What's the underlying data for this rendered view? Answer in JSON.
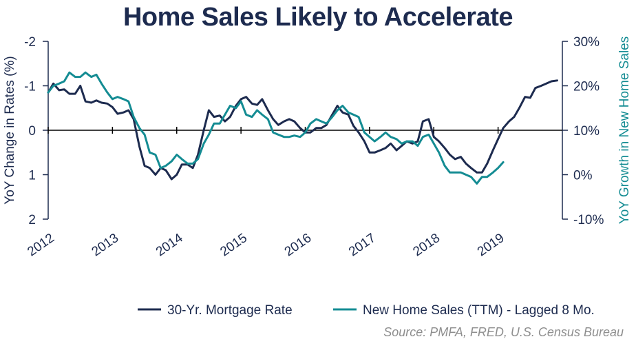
{
  "chart_data": {
    "type": "line",
    "title": "Home Sales Likely to Accelerate",
    "ylabel_left": "YoY Change in Rates (%)",
    "ylabel_right": "YoY Growth in New Home Sales",
    "left_axis": {
      "min": -2,
      "max": 2,
      "inverted": true,
      "ticks": [
        -2,
        -1,
        0,
        1,
        2
      ],
      "tick_labels": [
        "-2",
        "-1",
        "0",
        "1",
        "2"
      ]
    },
    "right_axis": {
      "min": -10,
      "max": 30,
      "ticks": [
        30,
        20,
        10,
        0,
        -10
      ],
      "tick_labels": [
        "30%",
        "20%",
        "10%",
        "0%",
        "-10%"
      ]
    },
    "x_axis": {
      "min": 2012.0,
      "max": 2020.0,
      "tick_labels": [
        "2012",
        "2013",
        "2014",
        "2015",
        "2016",
        "2017",
        "2018",
        "2019"
      ],
      "tick_years": [
        2012,
        2013,
        2014,
        2015,
        2016,
        2017,
        2018,
        2019
      ]
    },
    "series": [
      {
        "name": "30-Yr. Mortgage Rate",
        "axis": "left",
        "color": "#1d2b4f",
        "x": [
          2012.0,
          2012.08,
          2012.17,
          2012.25,
          2012.33,
          2012.42,
          2012.5,
          2012.58,
          2012.67,
          2012.75,
          2012.83,
          2012.92,
          2013.0,
          2013.08,
          2013.17,
          2013.25,
          2013.33,
          2013.42,
          2013.5,
          2013.58,
          2013.67,
          2013.75,
          2013.83,
          2013.92,
          2014.0,
          2014.08,
          2014.17,
          2014.25,
          2014.33,
          2014.42,
          2014.5,
          2014.58,
          2014.67,
          2014.75,
          2014.83,
          2014.92,
          2015.0,
          2015.08,
          2015.17,
          2015.25,
          2015.33,
          2015.42,
          2015.5,
          2015.58,
          2015.67,
          2015.75,
          2015.83,
          2015.92,
          2016.0,
          2016.08,
          2016.17,
          2016.25,
          2016.33,
          2016.42,
          2016.5,
          2016.58,
          2016.67,
          2016.75,
          2016.83,
          2016.92,
          2017.0,
          2017.08,
          2017.17,
          2017.25,
          2017.33,
          2017.42,
          2017.5,
          2017.58,
          2017.67,
          2017.75,
          2017.83,
          2017.92,
          2018.0,
          2018.08,
          2018.17,
          2018.25,
          2018.33,
          2018.42,
          2018.5,
          2018.58,
          2018.67,
          2018.75,
          2018.83,
          2018.92,
          2019.0,
          2019.08,
          2019.17,
          2019.25,
          2019.33,
          2019.42,
          2019.5,
          2019.58,
          2019.67,
          2019.75,
          2019.83,
          2019.92
        ],
        "values": [
          -0.85,
          -1.05,
          -0.9,
          -0.92,
          -0.82,
          -0.82,
          -1.0,
          -0.65,
          -0.62,
          -0.67,
          -0.62,
          -0.6,
          -0.52,
          -0.37,
          -0.4,
          -0.45,
          -0.25,
          0.37,
          0.8,
          0.85,
          1.0,
          0.85,
          0.9,
          1.1,
          1.0,
          0.77,
          0.77,
          0.85,
          0.55,
          0.0,
          -0.45,
          -0.3,
          -0.33,
          -0.2,
          -0.3,
          -0.55,
          -0.7,
          -0.75,
          -0.6,
          -0.57,
          -0.7,
          -0.45,
          -0.25,
          -0.12,
          -0.2,
          -0.25,
          -0.2,
          -0.05,
          0.05,
          0.05,
          -0.05,
          -0.05,
          -0.12,
          -0.35,
          -0.55,
          -0.4,
          -0.35,
          -0.1,
          0.05,
          0.25,
          0.5,
          0.5,
          0.45,
          0.4,
          0.3,
          0.45,
          0.35,
          0.25,
          0.3,
          0.25,
          -0.2,
          -0.25,
          0.15,
          0.25,
          0.4,
          0.55,
          0.65,
          0.6,
          0.75,
          0.85,
          0.95,
          0.95,
          0.75,
          0.45,
          0.2,
          -0.05,
          -0.2,
          -0.3,
          -0.5,
          -0.75,
          -0.73,
          -0.95,
          -1.0,
          -1.05,
          -1.1,
          -1.12
        ]
      },
      {
        "name": "New Home Sales (TTM) - Lagged 8 Mo.",
        "axis": "right",
        "color": "#148c93",
        "x": [
          2012.0,
          2012.08,
          2012.17,
          2012.25,
          2012.33,
          2012.42,
          2012.5,
          2012.58,
          2012.67,
          2012.75,
          2012.83,
          2012.92,
          2013.0,
          2013.08,
          2013.17,
          2013.25,
          2013.33,
          2013.42,
          2013.5,
          2013.58,
          2013.67,
          2013.75,
          2013.83,
          2013.92,
          2014.0,
          2014.08,
          2014.17,
          2014.25,
          2014.33,
          2014.42,
          2014.5,
          2014.58,
          2014.67,
          2014.75,
          2014.83,
          2014.92,
          2015.0,
          2015.08,
          2015.17,
          2015.25,
          2015.33,
          2015.42,
          2015.5,
          2015.58,
          2015.67,
          2015.75,
          2015.83,
          2015.92,
          2016.0,
          2016.08,
          2016.17,
          2016.25,
          2016.33,
          2016.42,
          2016.5,
          2016.58,
          2016.67,
          2016.75,
          2016.83,
          2016.92,
          2017.0,
          2017.08,
          2017.17,
          2017.25,
          2017.33,
          2017.42,
          2017.5,
          2017.58,
          2017.67,
          2017.75,
          2017.83,
          2017.92,
          2018.0,
          2018.08,
          2018.17,
          2018.25,
          2018.33,
          2018.42,
          2018.5,
          2018.58,
          2018.67,
          2018.75,
          2018.83,
          2018.92,
          2019.0,
          2019.08
        ],
        "values": [
          18.5,
          20.0,
          20.5,
          21.0,
          23.0,
          22.0,
          22.0,
          23.0,
          22.0,
          22.5,
          20.5,
          18.5,
          17.0,
          17.5,
          17.0,
          16.5,
          13.0,
          10.5,
          9.0,
          5.0,
          4.5,
          1.5,
          2.0,
          3.0,
          4.5,
          3.5,
          2.5,
          2.5,
          3.5,
          7.0,
          9.0,
          11.5,
          11.5,
          13.5,
          15.5,
          15.0,
          16.5,
          13.5,
          13.0,
          14.5,
          13.5,
          12.5,
          9.5,
          9.0,
          8.5,
          8.5,
          8.8,
          8.5,
          9.5,
          11.5,
          12.5,
          12.0,
          11.5,
          13.0,
          14.5,
          15.5,
          14.0,
          13.5,
          13.0,
          9.5,
          8.5,
          7.5,
          8.5,
          9.5,
          8.5,
          8.0,
          7.0,
          7.5,
          7.5,
          6.5,
          8.5,
          9.0,
          7.0,
          5.0,
          2.0,
          0.5,
          0.5,
          0.5,
          0.0,
          -0.5,
          -2.0,
          -0.5,
          -0.5,
          0.5,
          1.5,
          2.8
        ]
      }
    ],
    "legend": [
      {
        "label": "30-Yr. Mortgage Rate",
        "color": "#1d2b4f"
      },
      {
        "label": "New Home Sales (TTM) - Lagged 8 Mo.",
        "color": "#148c93"
      }
    ],
    "source": "Source: PMFA, FRED, U.S. Census Bureau",
    "grid": false,
    "legend_position": "bottom-center"
  }
}
